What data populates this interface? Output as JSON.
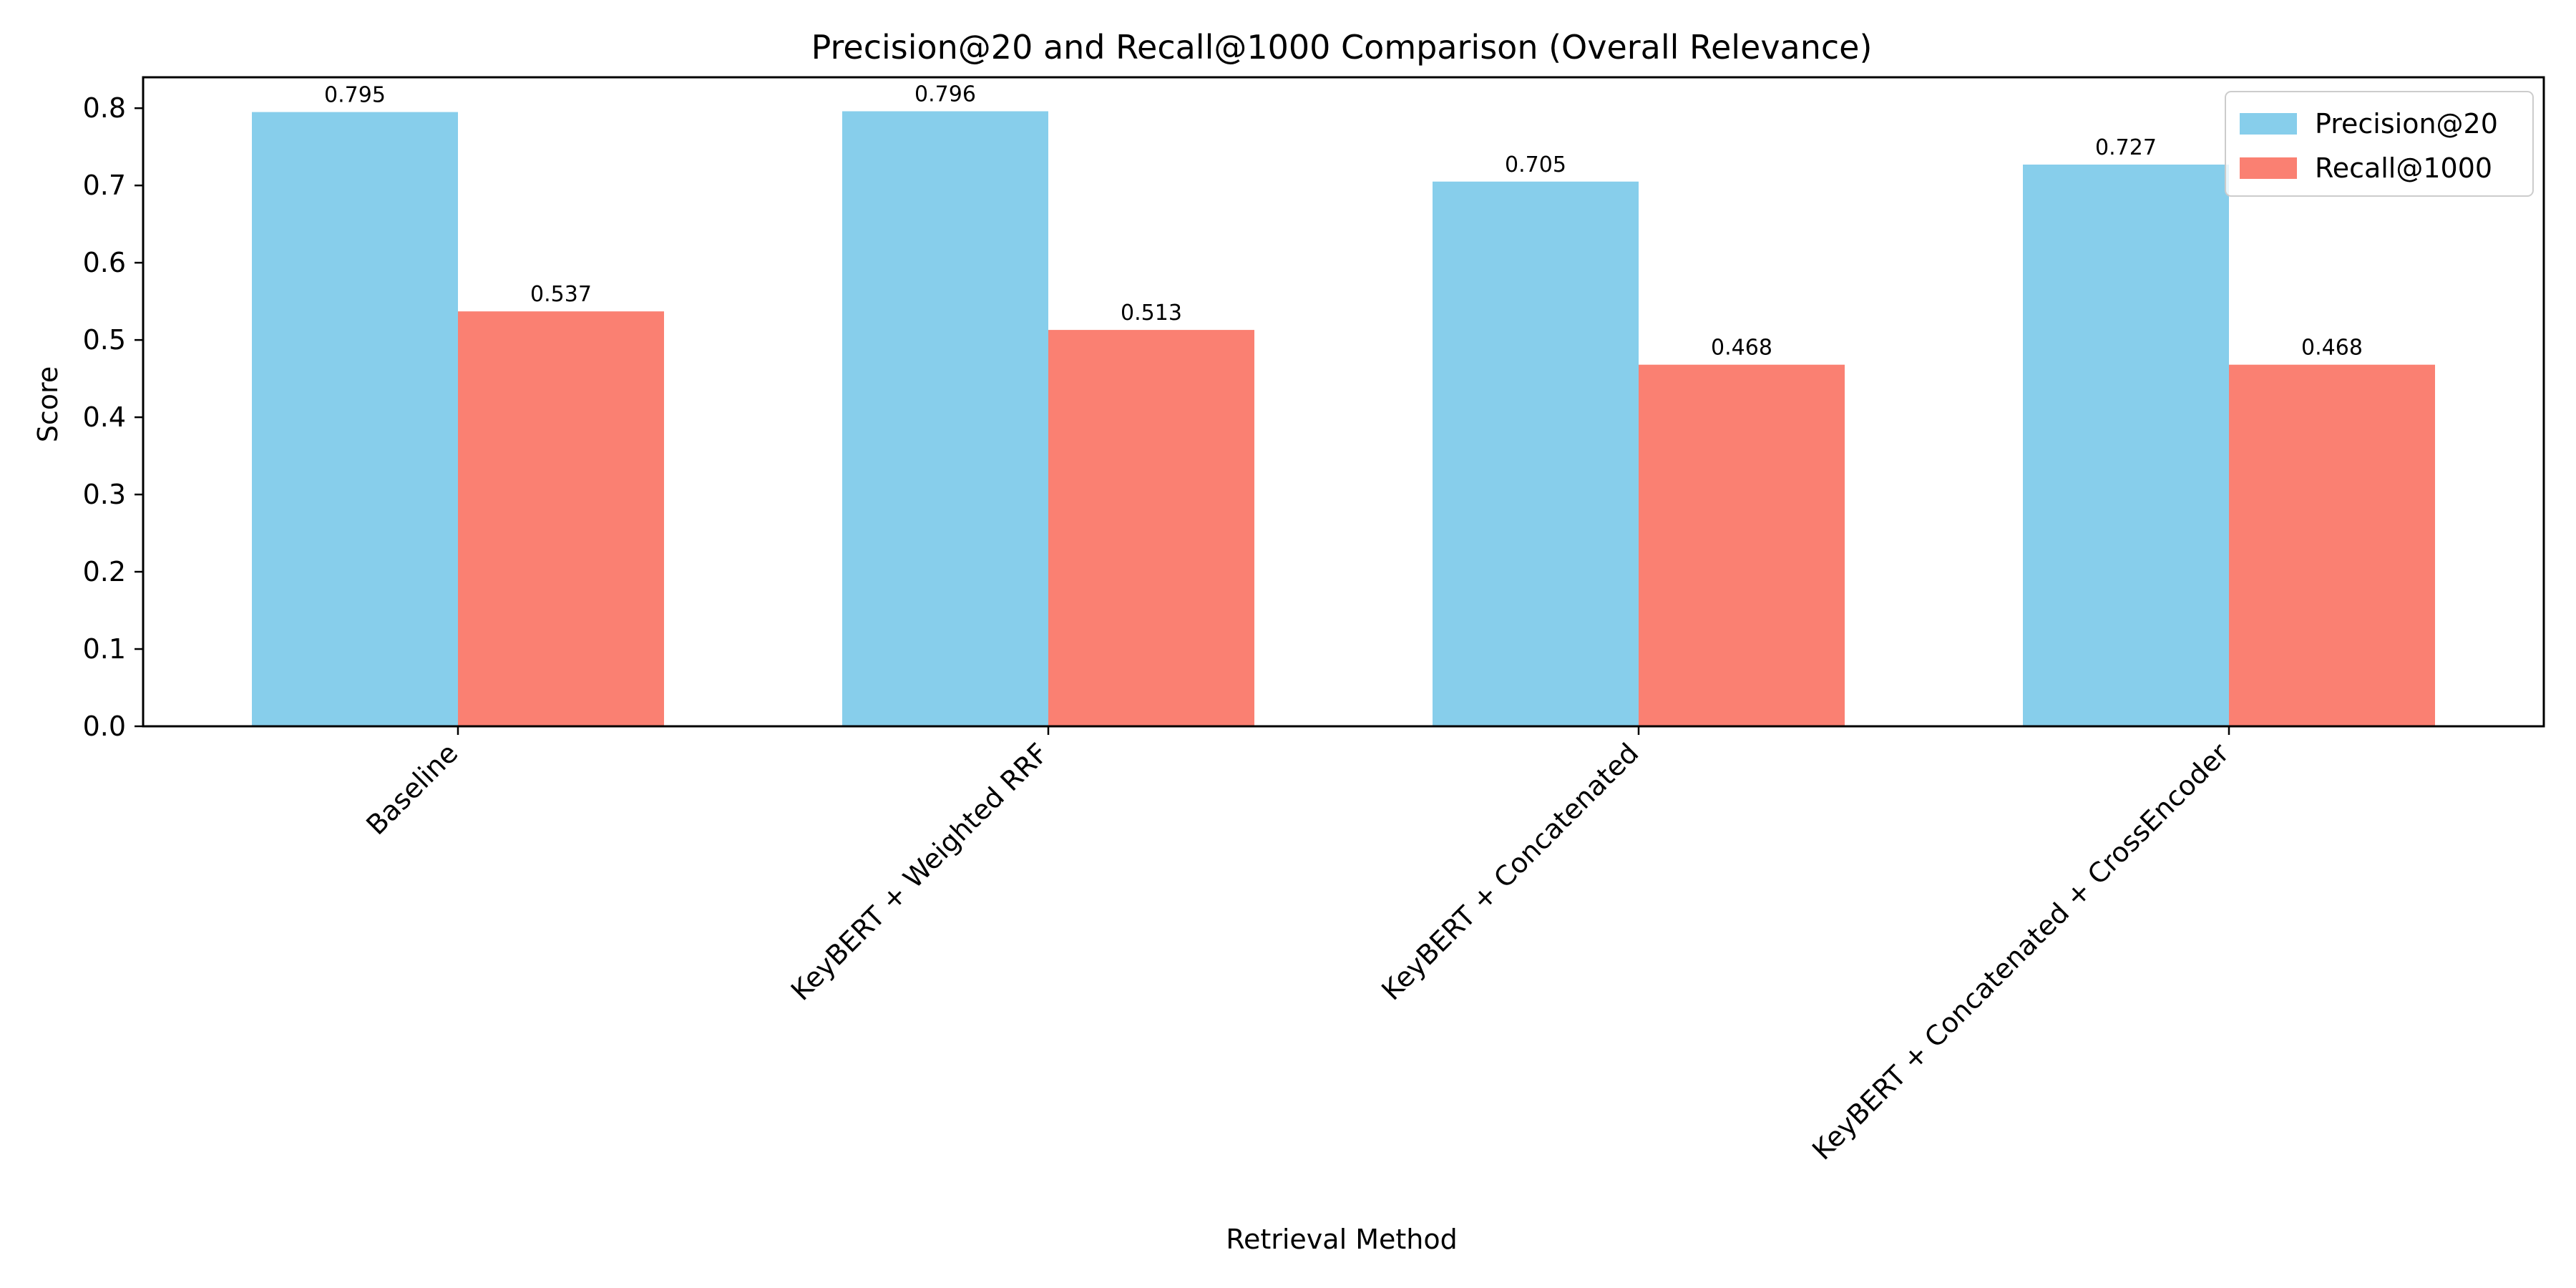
{
  "chart_data": {
    "type": "bar",
    "title": "Precision@20 and Recall@1000 Comparison (Overall Relevance)",
    "xlabel": "Retrieval Method",
    "ylabel": "Score",
    "ylim": [
      0,
      0.84
    ],
    "yticks": [
      0.0,
      0.1,
      0.2,
      0.3,
      0.4,
      0.5,
      0.6,
      0.7,
      0.8
    ],
    "ytick_labels": [
      "0.0",
      "0.1",
      "0.2",
      "0.3",
      "0.4",
      "0.5",
      "0.6",
      "0.7",
      "0.8"
    ],
    "categories": [
      "Baseline",
      "KeyBERT + Weighted RRF",
      "KeyBERT + Concatenated",
      "KeyBERT + Concatenated + CrossEncoder"
    ],
    "series": [
      {
        "name": "Precision@20",
        "color": "#87ceeb",
        "values": [
          0.795,
          0.796,
          0.705,
          0.727
        ],
        "labels": [
          "0.795",
          "0.796",
          "0.705",
          "0.727"
        ]
      },
      {
        "name": "Recall@1000",
        "color": "#fa8072",
        "values": [
          0.537,
          0.513,
          0.468,
          0.468
        ],
        "labels": [
          "0.537",
          "0.513",
          "0.468",
          "0.468"
        ]
      }
    ],
    "grid": false,
    "legend": "top-right"
  }
}
